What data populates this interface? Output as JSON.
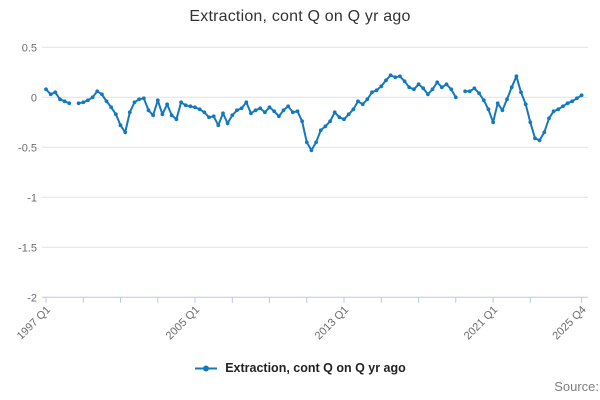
{
  "chart": {
    "title": "Extraction, cont Q on Q yr ago",
    "legend_label": "Extraction, cont Q on Q yr ago",
    "source_label": "Source:"
  },
  "chart_data": {
    "type": "line",
    "title": "Extraction, cont Q on Q yr ago",
    "x_start": "1997 Q1",
    "x_end": "2025 Q4",
    "frequency": "quarterly",
    "grid": "horizontal",
    "legend_position": "bottom",
    "ylim": [
      -2,
      0.5
    ],
    "y_axis": {
      "ticks": [
        {
          "value": 0.5,
          "label": "0.5"
        },
        {
          "value": 0,
          "label": "0"
        },
        {
          "value": -0.5,
          "label": "-0.5"
        },
        {
          "value": -1,
          "label": "-1"
        },
        {
          "value": -1.5,
          "label": "-1.5"
        },
        {
          "value": -2,
          "label": "-2"
        }
      ]
    },
    "x_axis": {
      "tick_positions_q": [
        0,
        8,
        16,
        24,
        32,
        40,
        48,
        56,
        64,
        72,
        80,
        88,
        96,
        104,
        115
      ],
      "labels": [
        {
          "q": 0,
          "label": "1997 Q1"
        },
        {
          "q": 32,
          "label": "2005 Q1"
        },
        {
          "q": 64,
          "label": "2013 Q1"
        },
        {
          "q": 96,
          "label": "2021 Q1"
        },
        {
          "q": 115,
          "label": "2025 Q4"
        }
      ]
    },
    "series": [
      {
        "name": "Extraction, cont Q on Q yr ago",
        "values": [
          0.08,
          0.03,
          0.05,
          -0.02,
          -0.04,
          -0.06,
          null,
          -0.06,
          -0.05,
          -0.03,
          0,
          0.06,
          0.03,
          -0.04,
          -0.1,
          -0.17,
          -0.28,
          -0.35,
          -0.15,
          -0.05,
          -0.02,
          -0.01,
          -0.13,
          -0.18,
          -0.03,
          -0.17,
          -0.07,
          -0.18,
          -0.22,
          -0.05,
          -0.08,
          -0.09,
          -0.1,
          -0.12,
          -0.15,
          -0.2,
          -0.19,
          -0.28,
          -0.16,
          -0.26,
          -0.18,
          -0.13,
          -0.11,
          -0.05,
          -0.16,
          -0.13,
          -0.11,
          -0.15,
          -0.1,
          -0.14,
          -0.19,
          -0.13,
          -0.09,
          -0.15,
          -0.14,
          -0.24,
          -0.45,
          -0.53,
          -0.45,
          -0.33,
          -0.29,
          -0.24,
          -0.15,
          -0.2,
          -0.22,
          -0.17,
          -0.12,
          -0.04,
          -0.07,
          -0.02,
          0.05,
          0.07,
          0.11,
          0.17,
          0.22,
          0.2,
          0.21,
          0.16,
          0.1,
          0.08,
          0.13,
          0.09,
          0.03,
          0.08,
          0.15,
          0.1,
          0.13,
          0.08,
          0,
          null,
          0.06,
          0.06,
          0.09,
          0.04,
          -0.03,
          -0.12,
          -0.25,
          -0.06,
          -0.13,
          -0.02,
          0.1,
          0.21,
          0.05,
          -0.07,
          -0.25,
          -0.41,
          -0.43,
          -0.35,
          -0.21,
          -0.14,
          -0.12,
          -0.09,
          -0.06,
          -0.04,
          -0.01,
          0.02
        ]
      }
    ],
    "colors": {
      "line": "#1478be",
      "grid": "#e2e2e2",
      "axis": "#bcc9e1",
      "tick_label": "#6b6b6b",
      "title": "#333333",
      "legend_text": "#222222",
      "source_text": "#808080"
    }
  }
}
